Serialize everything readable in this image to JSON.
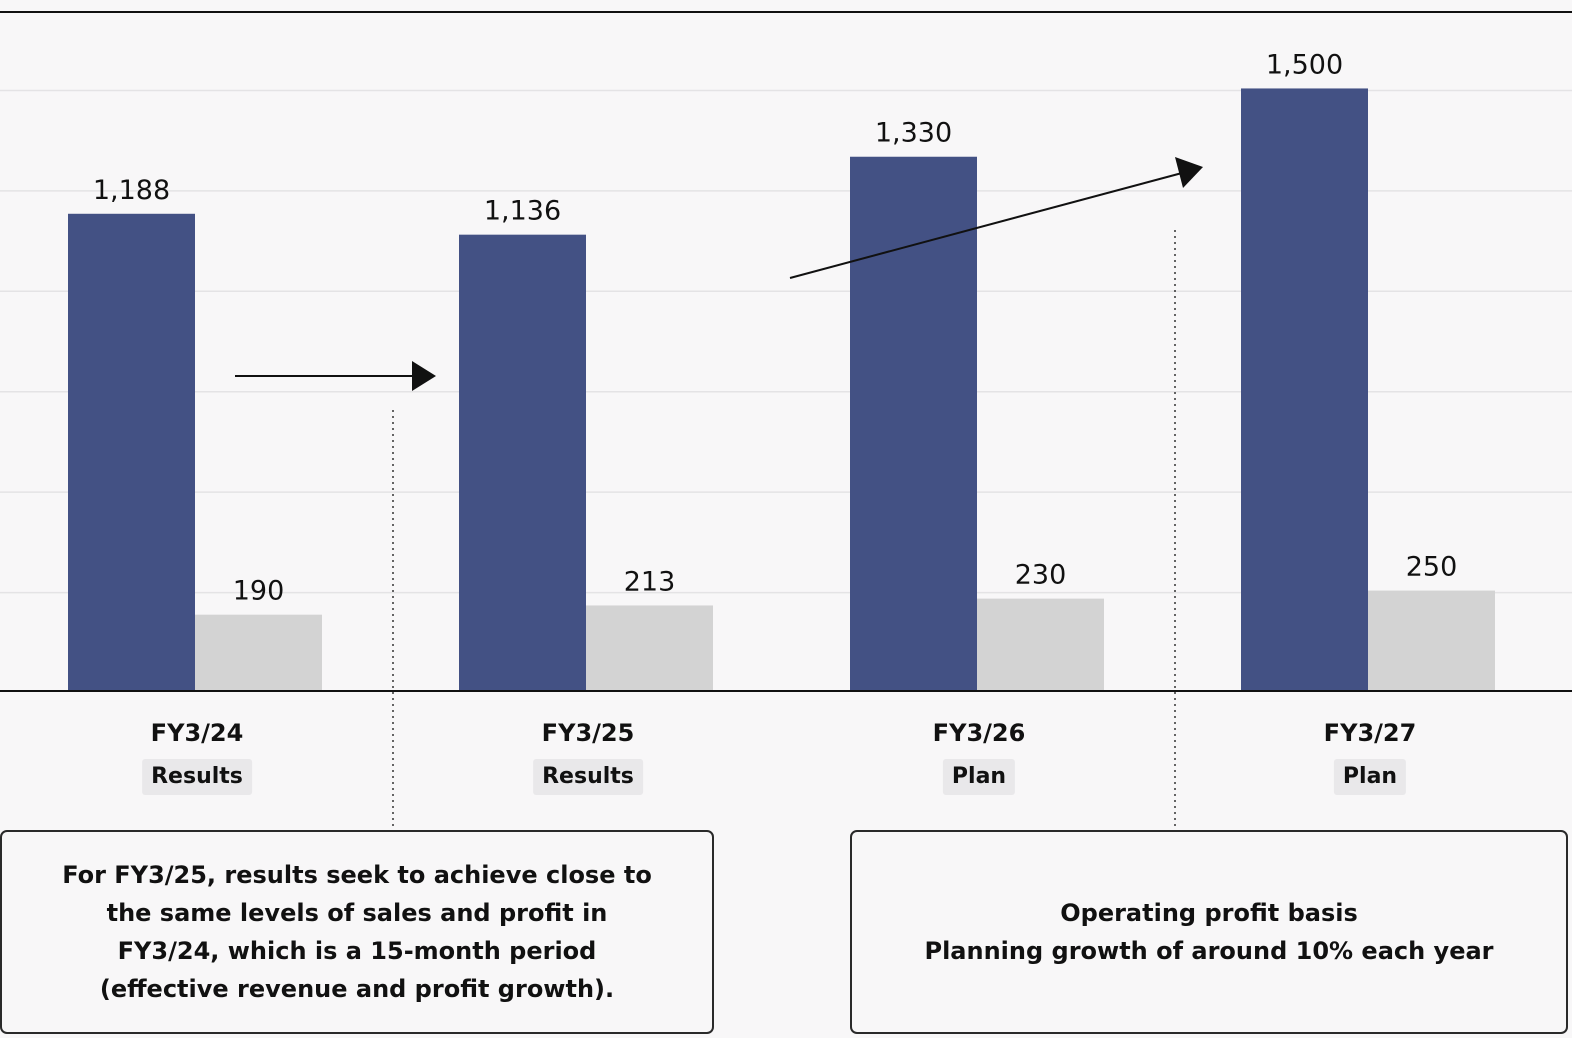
{
  "chart_data": {
    "type": "bar",
    "categories": [
      "FY3/24",
      "FY3/25",
      "FY3/26",
      "FY3/27"
    ],
    "category_status": [
      "Results",
      "Results",
      "Plan",
      "Plan"
    ],
    "series": [
      {
        "values": [
          1188,
          1136,
          1330,
          1500
        ],
        "color": "#435184"
      },
      {
        "values": [
          190,
          213,
          230,
          250
        ],
        "color": "#d3d3d3"
      }
    ],
    "value_labels": [
      [
        "1,188",
        "1,136",
        "1,330",
        "1,500"
      ],
      [
        "190",
        "213",
        "230",
        "250"
      ]
    ],
    "title": "",
    "xlabel": "",
    "ylabel": "",
    "ylim": [
      0,
      1500
    ],
    "grid": true,
    "legend": "none"
  },
  "notes": {
    "left": "For FY3/25, results seek to achieve close to\nthe same levels of sales and profit in\nFY3/24, which is a 15-month period\n(effective revenue and profit growth).",
    "right": "Operating profit basis\nPlanning growth of around 10% each year"
  },
  "colors": {
    "background": "#f8f7f8",
    "sales_bar": "#435184",
    "profit_bar": "#d3d3d3",
    "gridline": "#e4e3e5",
    "axis": "#111111",
    "badge": "#e9e8ea"
  }
}
